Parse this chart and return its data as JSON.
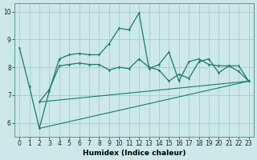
{
  "xlabel": "Humidex (Indice chaleur)",
  "bg_color": "#cce8e8",
  "line_color": "#1a7a6e",
  "grid_color": "#aacccc",
  "xlim": [
    -0.5,
    23.5
  ],
  "ylim": [
    5.5,
    10.3
  ],
  "yticks": [
    6,
    7,
    8,
    9,
    10
  ],
  "xticks": [
    0,
    1,
    2,
    3,
    4,
    5,
    6,
    7,
    8,
    9,
    10,
    11,
    12,
    13,
    14,
    15,
    16,
    17,
    18,
    19,
    20,
    21,
    22,
    23
  ],
  "series1_x": [
    0,
    1,
    2,
    3,
    4,
    5,
    6,
    7,
    8,
    9,
    10,
    11,
    12,
    13,
    14,
    15,
    16,
    17,
    18,
    19,
    20,
    21,
    22,
    23
  ],
  "series1_y": [
    8.7,
    7.3,
    5.8,
    7.15,
    8.3,
    8.45,
    8.5,
    8.45,
    8.45,
    8.85,
    9.4,
    9.35,
    9.95,
    7.95,
    8.1,
    8.55,
    7.5,
    8.2,
    8.3,
    8.1,
    8.05,
    8.05,
    7.85,
    7.5
  ],
  "series2_x": [
    2,
    3,
    4,
    5,
    6,
    7,
    8,
    9,
    10,
    11,
    12,
    13,
    14,
    15,
    16,
    17,
    18,
    19,
    20,
    21,
    22,
    23
  ],
  "series2_y": [
    6.75,
    7.2,
    8.05,
    8.1,
    8.15,
    8.1,
    8.1,
    7.9,
    8.0,
    7.95,
    8.3,
    8.0,
    7.9,
    7.5,
    7.75,
    7.6,
    8.2,
    8.3,
    7.8,
    8.05,
    8.05,
    7.5
  ],
  "line3_x": [
    2,
    23
  ],
  "line3_y": [
    5.8,
    7.5
  ],
  "line4_x": [
    2,
    23
  ],
  "line4_y": [
    6.75,
    7.5
  ],
  "tick_fontsize": 5.5,
  "xlabel_fontsize": 6.5
}
